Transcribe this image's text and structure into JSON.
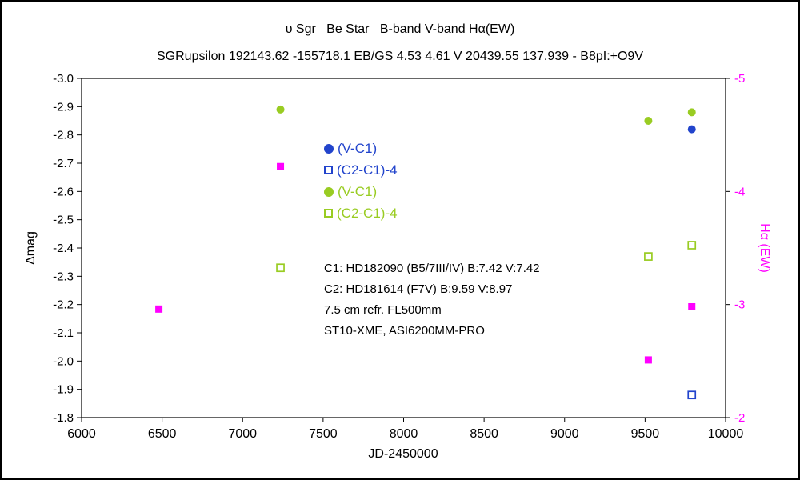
{
  "title": "υ Sgr   Be Star   B-band V-band Hα(EW)",
  "subtitle": "SGRupsilon 192143.62 -155718.1 EB/GS 4.53 4.61 V 20439.55 137.939 - B8pI:+O9V",
  "colors": {
    "blue": "#2244CC",
    "green": "#99CC22",
    "magenta": "#FF00FF",
    "axis": "#000000",
    "background": "#FFFFFF"
  },
  "chart_data": {
    "type": "scatter",
    "xlabel": "JD-2450000",
    "ylabel_left": "Δmag",
    "ylabel_right": "Hα (EW)",
    "xlim": [
      6000,
      10000
    ],
    "ylim_left": [
      -3.0,
      -1.8
    ],
    "ylim_right": [
      -5,
      -2
    ],
    "x_ticks": [
      6000,
      6500,
      7000,
      7500,
      8000,
      8500,
      9000,
      9500,
      10000
    ],
    "y_left_ticks": [
      -3.0,
      -2.9,
      -2.8,
      -2.7,
      -2.6,
      -2.5,
      -2.4,
      -2.3,
      -2.2,
      -2.1,
      -2.0,
      -1.9,
      -1.8
    ],
    "y_left_tick_labels": [
      "-3.0",
      "-2.9",
      "-2.8",
      "-2.7",
      "-2.6",
      "-2.5",
      "-2.4",
      "-2.3",
      "-2.2",
      "-2.1",
      "-2.0",
      "-1.9",
      "-1.8"
    ],
    "y_right_ticks": [
      -5,
      -4,
      -3,
      -2
    ],
    "y_right_tick_labels": [
      "-5",
      "-4",
      "-3",
      "-2"
    ],
    "grid": false,
    "legend_position": "inside-upper-middle",
    "series": [
      {
        "name": "V-C1-blue",
        "label": "(V-C1)",
        "marker": "circle",
        "fill": "filled",
        "color_key": "blue",
        "axis": "left",
        "points": [
          [
            9790,
            -2.82
          ]
        ]
      },
      {
        "name": "C2-C1-minus4-blue",
        "label": "(C2-C1)-4",
        "marker": "square",
        "fill": "open",
        "color_key": "blue",
        "axis": "left",
        "points": [
          [
            9790,
            -1.88
          ]
        ]
      },
      {
        "name": "V-C1-green",
        "label": "(V-C1)",
        "marker": "circle",
        "fill": "filled",
        "color_key": "green",
        "axis": "left",
        "points": [
          [
            7235,
            -2.89
          ],
          [
            9520,
            -2.85
          ],
          [
            9790,
            -2.88
          ]
        ]
      },
      {
        "name": "C2-C1-minus4-green",
        "label": "(C2-C1)-4",
        "marker": "square",
        "fill": "open",
        "color_key": "green",
        "axis": "left",
        "points": [
          [
            7235,
            -2.33
          ],
          [
            9520,
            -2.37
          ],
          [
            9790,
            -2.41
          ]
        ]
      },
      {
        "name": "Halpha-EW",
        "label": "Hα (EW)",
        "marker": "square",
        "fill": "filled",
        "color_key": "magenta",
        "axis": "right",
        "points": [
          [
            6480,
            -2.96
          ],
          [
            7235,
            -4.22
          ],
          [
            9520,
            -2.51
          ],
          [
            9790,
            -2.98
          ]
        ]
      }
    ],
    "legend": [
      {
        "label": "(V-C1)",
        "marker": "circle",
        "fill": "filled",
        "color_key": "blue"
      },
      {
        "label": "(C2-C1)-4",
        "marker": "square",
        "fill": "open",
        "color_key": "blue"
      },
      {
        "label": "(V-C1)",
        "marker": "circle",
        "fill": "filled",
        "color_key": "green"
      },
      {
        "label": "(C2-C1)-4",
        "marker": "square",
        "fill": "open",
        "color_key": "green"
      }
    ],
    "annotations": [
      "C1: HD182090 (B5/7III/IV) B:7.42 V:7.42",
      "C2: HD181614 (F7V) B:9.59 V:8.97",
      "7.5 cm refr. FL500mm",
      "ST10-XME, ASI6200MM-PRO"
    ]
  }
}
